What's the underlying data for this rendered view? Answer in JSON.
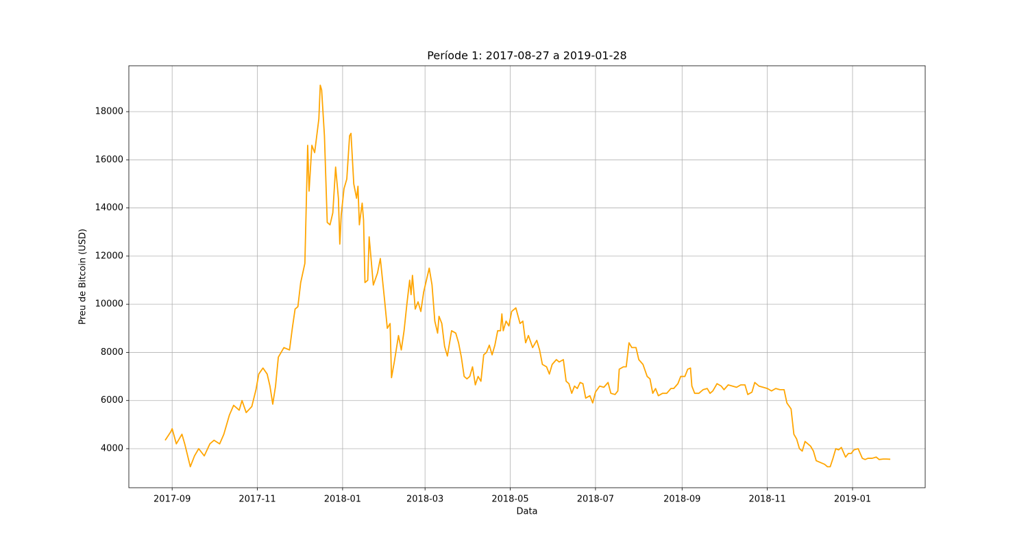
{
  "chart_data": {
    "type": "line",
    "title": "Període 1: 2017-08-27 a 2019-01-28",
    "xlabel": "Data",
    "ylabel": "Preu de Bitcoin (USD)",
    "color": "#ffa500",
    "grid": true,
    "x": [
      "2017-08-27",
      "2017-08-31",
      "2017-09-01",
      "2017-09-04",
      "2017-09-08",
      "2017-09-10",
      "2017-09-14",
      "2017-09-17",
      "2017-09-20",
      "2017-09-24",
      "2017-09-28",
      "2017-10-01",
      "2017-10-05",
      "2017-10-08",
      "2017-10-12",
      "2017-10-15",
      "2017-10-19",
      "2017-10-21",
      "2017-10-24",
      "2017-10-28",
      "2017-10-31",
      "2017-11-02",
      "2017-11-05",
      "2017-11-08",
      "2017-11-10",
      "2017-11-12",
      "2017-11-14",
      "2017-11-16",
      "2017-11-20",
      "2017-11-24",
      "2017-11-26",
      "2017-11-28",
      "2017-11-30",
      "2017-12-02",
      "2017-12-05",
      "2017-12-07",
      "2017-12-08",
      "2017-12-10",
      "2017-12-12",
      "2017-12-15",
      "2017-12-16",
      "2017-12-17",
      "2017-12-19",
      "2017-12-21",
      "2017-12-23",
      "2017-12-25",
      "2017-12-27",
      "2017-12-29",
      "2017-12-30",
      "2017-12-31",
      "2018-01-02",
      "2018-01-04",
      "2018-01-06",
      "2018-01-07",
      "2018-01-09",
      "2018-01-11",
      "2018-01-12",
      "2018-01-13",
      "2018-01-15",
      "2018-01-16",
      "2018-01-17",
      "2018-01-19",
      "2018-01-20",
      "2018-01-23",
      "2018-01-26",
      "2018-01-28",
      "2018-01-31",
      "2018-02-02",
      "2018-02-04",
      "2018-02-05",
      "2018-02-07",
      "2018-02-10",
      "2018-02-12",
      "2018-02-14",
      "2018-02-16",
      "2018-02-18",
      "2018-02-19",
      "2018-02-20",
      "2018-02-22",
      "2018-02-24",
      "2018-02-26",
      "2018-02-28",
      "2018-03-02",
      "2018-03-04",
      "2018-03-06",
      "2018-03-08",
      "2018-03-10",
      "2018-03-11",
      "2018-03-13",
      "2018-03-15",
      "2018-03-17",
      "2018-03-20",
      "2018-03-23",
      "2018-03-25",
      "2018-03-27",
      "2018-03-29",
      "2018-03-31",
      "2018-04-02",
      "2018-04-04",
      "2018-04-06",
      "2018-04-08",
      "2018-04-10",
      "2018-04-12",
      "2018-04-14",
      "2018-04-16",
      "2018-04-18",
      "2018-04-20",
      "2018-04-22",
      "2018-04-24",
      "2018-04-25",
      "2018-04-26",
      "2018-04-28",
      "2018-04-30",
      "2018-05-02",
      "2018-05-05",
      "2018-05-08",
      "2018-05-10",
      "2018-05-12",
      "2018-05-14",
      "2018-05-17",
      "2018-05-20",
      "2018-05-22",
      "2018-05-24",
      "2018-05-27",
      "2018-05-29",
      "2018-05-31",
      "2018-06-03",
      "2018-06-05",
      "2018-06-08",
      "2018-06-10",
      "2018-06-12",
      "2018-06-14",
      "2018-06-16",
      "2018-06-18",
      "2018-06-20",
      "2018-06-22",
      "2018-06-24",
      "2018-06-27",
      "2018-06-29",
      "2018-07-01",
      "2018-07-04",
      "2018-07-07",
      "2018-07-10",
      "2018-07-12",
      "2018-07-15",
      "2018-07-17",
      "2018-07-18",
      "2018-07-21",
      "2018-07-23",
      "2018-07-25",
      "2018-07-27",
      "2018-07-30",
      "2018-08-01",
      "2018-08-04",
      "2018-08-07",
      "2018-08-09",
      "2018-08-11",
      "2018-08-13",
      "2018-08-15",
      "2018-08-18",
      "2018-08-21",
      "2018-08-24",
      "2018-08-26",
      "2018-08-29",
      "2018-08-31",
      "2018-09-03",
      "2018-09-05",
      "2018-09-07",
      "2018-09-08",
      "2018-09-10",
      "2018-09-13",
      "2018-09-16",
      "2018-09-19",
      "2018-09-21",
      "2018-09-23",
      "2018-09-26",
      "2018-09-29",
      "2018-10-01",
      "2018-10-04",
      "2018-10-07",
      "2018-10-10",
      "2018-10-13",
      "2018-10-16",
      "2018-10-18",
      "2018-10-21",
      "2018-10-23",
      "2018-10-26",
      "2018-10-29",
      "2018-11-01",
      "2018-11-04",
      "2018-11-07",
      "2018-11-10",
      "2018-11-13",
      "2018-11-15",
      "2018-11-18",
      "2018-11-20",
      "2018-11-22",
      "2018-11-24",
      "2018-11-26",
      "2018-11-28",
      "2018-11-30",
      "2018-12-02",
      "2018-12-04",
      "2018-12-06",
      "2018-12-08",
      "2018-12-10",
      "2018-12-12",
      "2018-12-14",
      "2018-12-16",
      "2018-12-18",
      "2018-12-20",
      "2018-12-22",
      "2018-12-24",
      "2018-12-27",
      "2018-12-29",
      "2018-12-31",
      "2019-01-02",
      "2019-01-05",
      "2019-01-08",
      "2019-01-10",
      "2019-01-12",
      "2019-01-15",
      "2019-01-18",
      "2019-01-20",
      "2019-01-23",
      "2019-01-25",
      "2019-01-28"
    ],
    "values": [
      4350,
      4700,
      4830,
      4200,
      4600,
      4200,
      3250,
      3700,
      4000,
      3700,
      4200,
      4350,
      4200,
      4600,
      5400,
      5800,
      5600,
      6000,
      5500,
      5750,
      6450,
      7100,
      7350,
      7100,
      6600,
      5850,
      6600,
      7800,
      8200,
      8100,
      9000,
      9800,
      9900,
      10900,
      11700,
      16600,
      14700,
      16600,
      16300,
      17700,
      19100,
      18900,
      17000,
      13400,
      13300,
      13800,
      15700,
      14400,
      12500,
      13700,
      14800,
      15200,
      17000,
      17100,
      15000,
      14400,
      14900,
      13300,
      14200,
      13500,
      10900,
      11000,
      12800,
      10800,
      11300,
      11900,
      10200,
      9000,
      9200,
      6950,
      7600,
      8700,
      8100,
      8900,
      10000,
      11000,
      10400,
      11200,
      9800,
      10100,
      9700,
      10500,
      11000,
      11500,
      10800,
      9300,
      8800,
      9500,
      9200,
      8250,
      7850,
      8900,
      8800,
      8400,
      7800,
      7000,
      6900,
      7000,
      7400,
      6650,
      7000,
      6800,
      7900,
      8000,
      8300,
      7900,
      8300,
      8900,
      8900,
      9600,
      8900,
      9300,
      9100,
      9700,
      9850,
      9200,
      9300,
      8400,
      8700,
      8200,
      8500,
      8100,
      7500,
      7400,
      7100,
      7500,
      7700,
      7600,
      7700,
      6800,
      6700,
      6300,
      6600,
      6500,
      6750,
      6700,
      6100,
      6200,
      5900,
      6350,
      6600,
      6550,
      6750,
      6300,
      6250,
      6400,
      7300,
      7400,
      7400,
      8400,
      8200,
      8200,
      7700,
      7500,
      7000,
      6900,
      6300,
      6500,
      6200,
      6300,
      6300,
      6500,
      6500,
      6700,
      7000,
      7000,
      7300,
      7350,
      6600,
      6300,
      6300,
      6450,
      6500,
      6300,
      6400,
      6700,
      6600,
      6450,
      6650,
      6600,
      6550,
      6650,
      6650,
      6250,
      6350,
      6750,
      6600,
      6550,
      6500,
      6400,
      6500,
      6450,
      6450,
      5900,
      5650,
      4600,
      4400,
      4000,
      3900,
      4300,
      4200,
      4100,
      3900,
      3500,
      3450,
      3400,
      3350,
      3250,
      3250,
      3600,
      4000,
      3950,
      4050,
      3650,
      3800,
      3800,
      3950,
      4000,
      3600,
      3550,
      3600,
      3600,
      3650,
      3550,
      3570,
      3570,
      3560
    ],
    "xlim": [
      "2017-08-01",
      "2019-02-22"
    ],
    "xticks": [
      {
        "value": "2017-09-01",
        "label": "2017-09"
      },
      {
        "value": "2017-11-01",
        "label": "2017-11"
      },
      {
        "value": "2018-01-01",
        "label": "2018-01"
      },
      {
        "value": "2018-03-01",
        "label": "2018-03"
      },
      {
        "value": "2018-05-01",
        "label": "2018-05"
      },
      {
        "value": "2018-07-01",
        "label": "2018-07"
      },
      {
        "value": "2018-09-01",
        "label": "2018-09"
      },
      {
        "value": "2018-11-01",
        "label": "2018-11"
      },
      {
        "value": "2019-01-01",
        "label": "2019-01"
      }
    ],
    "ylim": [
      2378,
      19907
    ],
    "yticks": [
      4000,
      6000,
      8000,
      10000,
      12000,
      14000,
      16000,
      18000
    ]
  }
}
